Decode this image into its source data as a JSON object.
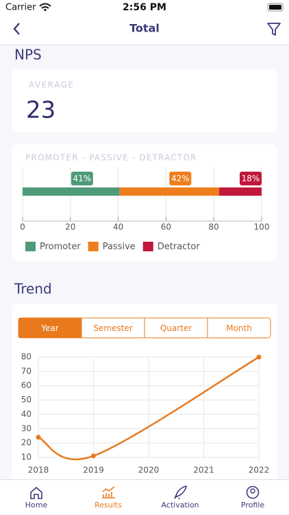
{
  "status_bar": {
    "carrier": "Carrier",
    "time": "2:56 PM"
  },
  "nav": {
    "title": "Total"
  },
  "nps": {
    "heading": "NPS",
    "average_label": "AVERAGE",
    "average": 23
  },
  "chart_data": [
    {
      "type": "stacked_bar",
      "title": "PROMOTER - PASSIVE - DETRACTOR",
      "series": [
        {
          "name": "Promoter",
          "color": "#4f9a78",
          "values": [
            40.6
          ],
          "value_labels": [
            "41%"
          ]
        },
        {
          "name": "Passive",
          "color": "#ee7d1c",
          "values": [
            41.6
          ],
          "value_labels": [
            "42%"
          ]
        },
        {
          "name": "Detractor",
          "color": "#c0183a",
          "values": [
            17.8
          ],
          "value_labels": [
            "18%"
          ]
        }
      ],
      "xlim": [
        0,
        100
      ],
      "xticks": [
        0,
        20,
        40,
        60,
        80,
        100
      ],
      "grid": true
    },
    {
      "type": "line",
      "title": "Trend",
      "periods": [
        "Year",
        "Semester",
        "Quarter",
        "Month"
      ],
      "selected_period": 0,
      "x": [
        2018,
        2019,
        2022
      ],
      "values": [
        24,
        11,
        80
      ],
      "color": "#e8791d",
      "xlim": [
        2018,
        2022
      ],
      "xticks": [
        2018,
        2019,
        2020,
        2021,
        2022
      ],
      "ylim": [
        10,
        80
      ],
      "yticks": [
        10,
        20,
        30,
        40,
        50,
        60,
        70,
        80
      ],
      "grid": true
    }
  ],
  "tab_bar": {
    "items": [
      "Home",
      "Results",
      "Activation",
      "Profile"
    ],
    "active": 1
  }
}
